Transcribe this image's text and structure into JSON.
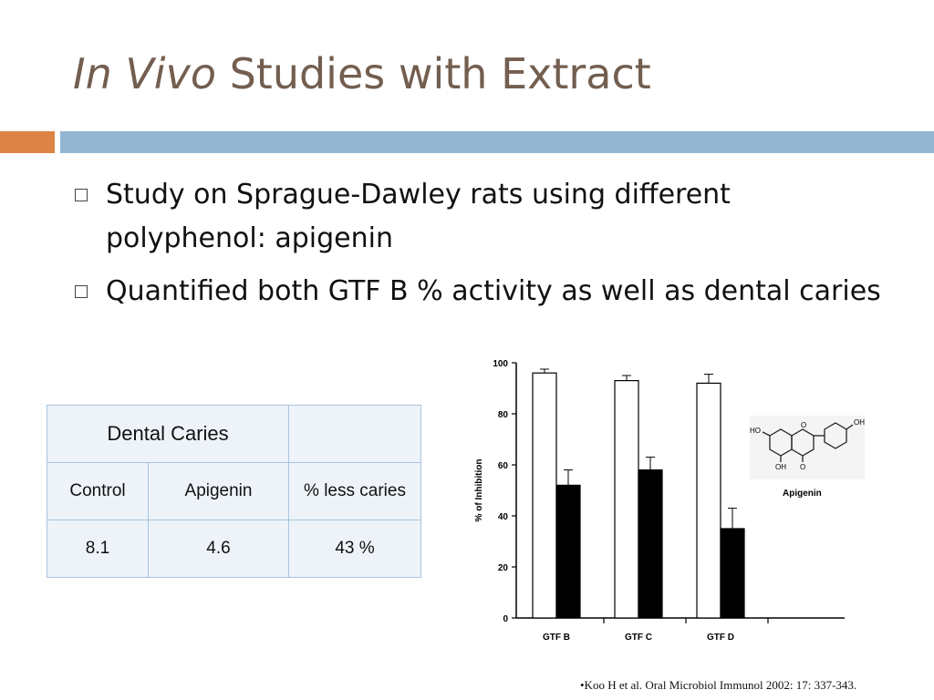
{
  "slide": {
    "title_italic": "In Vivo",
    "title_rest": "Studies with Extract",
    "bullets": [
      "Study on Sprague-Dawley rats using different polyphenol: apigenin",
      "Quantified both GTF B % activity as well as dental caries"
    ]
  },
  "table": {
    "header": "Dental Caries",
    "columns": [
      "Control",
      "Apigenin",
      "% less caries"
    ],
    "values": [
      "8.1",
      "4.6",
      "43 %"
    ]
  },
  "chart_data": {
    "type": "bar",
    "categories": [
      "GTF B",
      "GTF C",
      "GTF D"
    ],
    "ylabel": "% of Inhibition",
    "ylim": [
      0,
      100
    ],
    "yticks": [
      "0",
      "20",
      "40",
      "60",
      "80",
      "100"
    ],
    "series": [
      {
        "color": "#ffffff",
        "values": [
          96,
          93,
          92
        ],
        "errors": [
          1.5,
          2,
          3.5
        ]
      },
      {
        "color": "#000000",
        "values": [
          52,
          58,
          35
        ],
        "errors": [
          6,
          5,
          8
        ]
      }
    ]
  },
  "molecule": {
    "label": "Apigenin",
    "atoms": [
      "OH",
      "HO",
      "O",
      "OH",
      "O"
    ]
  },
  "reference": "•Koo H et al. Oral Microbiol Immunol 2002:  17:  337-343."
}
